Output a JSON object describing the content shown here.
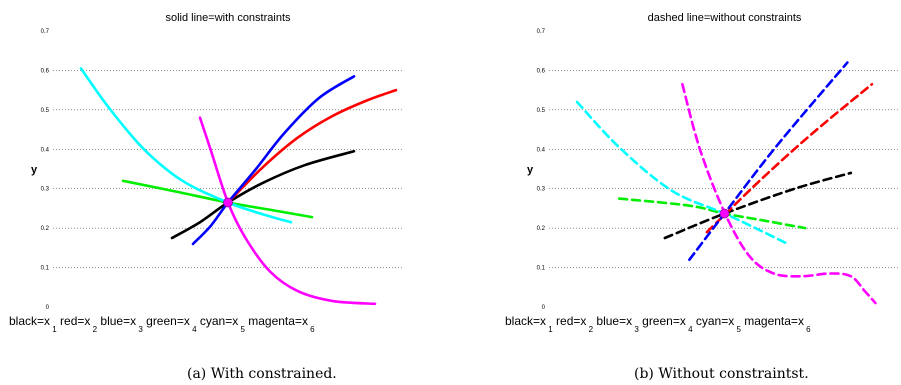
{
  "chart_data": [
    {
      "type": "line",
      "title": "solid line=with constraints",
      "ylabel": "y",
      "xlabel": "black=x 1 red=x 2 blue=x 3 green=x 4 cyan=x 5 magenta=x 6",
      "xlabel_parts": [
        {
          "text": "black=x",
          "sub": "1"
        },
        {
          "text": "red=x",
          "sub": "2"
        },
        {
          "text": "blue=x",
          "sub": "3"
        },
        {
          "text": "green=x",
          "sub": "4"
        },
        {
          "text": "cyan=x",
          "sub": "5"
        },
        {
          "text": "magenta=x",
          "sub": "6"
        }
      ],
      "caption": "(a) With constrained.",
      "xlim": [
        0,
        1
      ],
      "ylim": [
        0,
        0.7
      ],
      "yticks": [
        "0",
        "0.1",
        "0.2",
        "0.3",
        "0.4",
        "0.5",
        "0.6",
        "0.7"
      ],
      "grid": "horizontal dotted",
      "line_style": "solid",
      "intersection": {
        "x": 0.5,
        "y": 0.265,
        "color": "#ff00ff"
      },
      "series": [
        {
          "color": "#000000",
          "points": [
            [
              0.34,
              0.175
            ],
            [
              0.42,
              0.215
            ],
            [
              0.5,
              0.265
            ],
            [
              0.6,
              0.315
            ],
            [
              0.72,
              0.36
            ],
            [
              0.86,
              0.395
            ]
          ]
        },
        {
          "color": "#ff0000",
          "points": [
            [
              0.5,
              0.265
            ],
            [
              0.6,
              0.355
            ],
            [
              0.7,
              0.43
            ],
            [
              0.8,
              0.485
            ],
            [
              0.9,
              0.525
            ],
            [
              0.98,
              0.55
            ]
          ]
        },
        {
          "color": "#0000ff",
          "points": [
            [
              0.4,
              0.16
            ],
            [
              0.45,
              0.205
            ],
            [
              0.5,
              0.265
            ],
            [
              0.58,
              0.35
            ],
            [
              0.66,
              0.44
            ],
            [
              0.76,
              0.53
            ],
            [
              0.86,
              0.585
            ]
          ]
        },
        {
          "color": "#00ee00",
          "points": [
            [
              0.2,
              0.32
            ],
            [
              0.35,
              0.293
            ],
            [
              0.5,
              0.265
            ],
            [
              0.63,
              0.245
            ],
            [
              0.74,
              0.228
            ]
          ]
        },
        {
          "color": "#00ffff",
          "points": [
            [
              0.08,
              0.605
            ],
            [
              0.16,
              0.505
            ],
            [
              0.26,
              0.4
            ],
            [
              0.37,
              0.32
            ],
            [
              0.5,
              0.265
            ],
            [
              0.6,
              0.235
            ],
            [
              0.68,
              0.215
            ]
          ]
        },
        {
          "color": "#ff00ff",
          "points": [
            [
              0.42,
              0.48
            ],
            [
              0.45,
              0.4
            ],
            [
              0.5,
              0.265
            ],
            [
              0.55,
              0.175
            ],
            [
              0.62,
              0.09
            ],
            [
              0.7,
              0.04
            ],
            [
              0.8,
              0.015
            ],
            [
              0.92,
              0.008
            ]
          ]
        }
      ]
    },
    {
      "type": "line",
      "title": "dashed line=without constraints",
      "ylabel": "y",
      "xlabel": "black=x 1 red=x 2 blue=x 3 green=x 4 cyan=x 5 magenta=x 6",
      "xlabel_parts": [
        {
          "text": "black=x",
          "sub": "1"
        },
        {
          "text": "red=x",
          "sub": "2"
        },
        {
          "text": "blue=x",
          "sub": "3"
        },
        {
          "text": "green=x",
          "sub": "4"
        },
        {
          "text": "cyan=x",
          "sub": "5"
        },
        {
          "text": "magenta=x",
          "sub": "6"
        }
      ],
      "caption": "(b) Without constraintst.",
      "xlim": [
        0,
        1
      ],
      "ylim": [
        0,
        0.7
      ],
      "yticks": [
        "0",
        "0.1",
        "0.2",
        "0.3",
        "0.4",
        "0.5",
        "0.6",
        "0.7"
      ],
      "grid": "horizontal dotted",
      "line_style": "dashed",
      "intersection": {
        "x": 0.5,
        "y": 0.237,
        "color": "#ff00ff"
      },
      "series": [
        {
          "color": "#000000",
          "points": [
            [
              0.33,
              0.175
            ],
            [
              0.5,
              0.237
            ],
            [
              0.7,
              0.3
            ],
            [
              0.86,
              0.34
            ]
          ]
        },
        {
          "color": "#ff0000",
          "points": [
            [
              0.45,
              0.19
            ],
            [
              0.6,
              0.32
            ],
            [
              0.75,
              0.44
            ],
            [
              0.92,
              0.565
            ]
          ]
        },
        {
          "color": "#0000ff",
          "points": [
            [
              0.4,
              0.12
            ],
            [
              0.5,
              0.237
            ],
            [
              0.65,
              0.41
            ],
            [
              0.85,
              0.62
            ]
          ]
        },
        {
          "color": "#00ee00",
          "points": [
            [
              0.2,
              0.275
            ],
            [
              0.4,
              0.257
            ],
            [
              0.5,
              0.237
            ],
            [
              0.62,
              0.218
            ],
            [
              0.73,
              0.2
            ]
          ]
        },
        {
          "color": "#00ffff",
          "points": [
            [
              0.08,
              0.52
            ],
            [
              0.2,
              0.405
            ],
            [
              0.35,
              0.295
            ],
            [
              0.5,
              0.237
            ],
            [
              0.6,
              0.195
            ],
            [
              0.68,
              0.16
            ]
          ]
        },
        {
          "color": "#ff00ff",
          "points": [
            [
              0.38,
              0.565
            ],
            [
              0.43,
              0.4
            ],
            [
              0.5,
              0.24
            ],
            [
              0.57,
              0.13
            ],
            [
              0.64,
              0.085
            ],
            [
              0.72,
              0.078
            ],
            [
              0.8,
              0.085
            ],
            [
              0.86,
              0.078
            ],
            [
              0.9,
              0.04
            ],
            [
              0.93,
              0.01
            ]
          ]
        }
      ]
    }
  ]
}
